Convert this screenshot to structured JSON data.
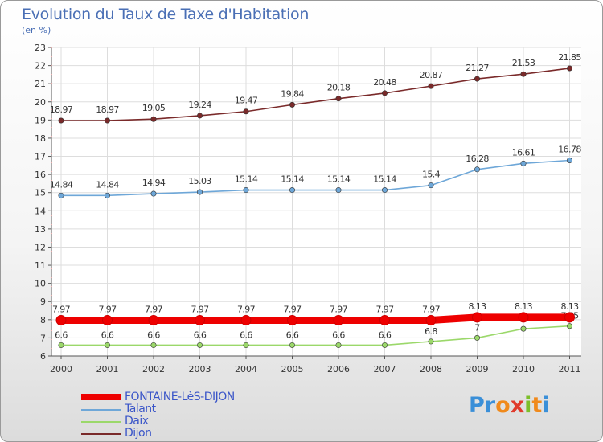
{
  "title": "Evolution du Taux de Taxe d'Habitation",
  "subtitle": "(en %)",
  "logo": {
    "letters": [
      "P",
      "r",
      "o",
      "x",
      "i",
      "t",
      "i"
    ],
    "colors": [
      "#3a8fd8",
      "#3a8fd8",
      "#f08a1c",
      "#e03a2c",
      "#7cbf2a",
      "#f08a1c",
      "#3a8fd8"
    ]
  },
  "chart_data": {
    "type": "line",
    "categories": [
      "2000",
      "2001",
      "2002",
      "2003",
      "2004",
      "2005",
      "2006",
      "2007",
      "2008",
      "2009",
      "2010",
      "2011"
    ],
    "ylim": [
      6,
      23
    ],
    "yticks": [
      "6",
      "7",
      "8",
      "9",
      "10",
      "11",
      "12",
      "13",
      "14",
      "15",
      "16",
      "17",
      "18",
      "19",
      "20",
      "21",
      "22",
      "23"
    ],
    "grid": true,
    "series": [
      {
        "name": "FONTAINE-LèS-DIJON",
        "color": "#ee0000",
        "values": [
          7.97,
          7.97,
          7.97,
          7.97,
          7.97,
          7.97,
          7.97,
          7.97,
          7.97,
          8.13,
          8.13,
          8.13
        ],
        "labels": [
          "7.97",
          "7.97",
          "7.97",
          "7.97",
          "7.97",
          "7.97",
          "7.97",
          "7.97",
          "7.97",
          "8.13",
          "8.13",
          "8.13"
        ]
      },
      {
        "name": "Talant",
        "color": "#6ea7d8",
        "values": [
          14.84,
          14.84,
          14.94,
          15.03,
          15.14,
          15.14,
          15.14,
          15.14,
          15.4,
          16.28,
          16.61,
          16.78
        ],
        "labels": [
          "14.84",
          "14.84",
          "14.94",
          "15.03",
          "15.14",
          "15.14",
          "15.14",
          "15.14",
          "15.4",
          "16.28",
          "16.61",
          "16.78"
        ]
      },
      {
        "name": "Daix",
        "color": "#9bd86a",
        "values": [
          6.6,
          6.6,
          6.6,
          6.6,
          6.6,
          6.6,
          6.6,
          6.6,
          6.8,
          7,
          7.5,
          7.65
        ],
        "labels": [
          "6.6",
          "6.6",
          "6.6",
          "6.6",
          "6.6",
          "6.6",
          "6.6",
          "6.6",
          "6.8",
          "7",
          "7.5",
          "7.65"
        ]
      },
      {
        "name": "Dijon",
        "color": "#7a2a2a",
        "values": [
          18.97,
          18.97,
          19.05,
          19.24,
          19.47,
          19.84,
          20.18,
          20.48,
          20.87,
          21.27,
          21.53,
          21.85
        ],
        "labels": [
          "18.97",
          "18.97",
          "19.05",
          "19.24",
          "19.47",
          "19.84",
          "20.18",
          "20.48",
          "20.87",
          "21.27",
          "21.53",
          "21.85"
        ]
      }
    ]
  }
}
